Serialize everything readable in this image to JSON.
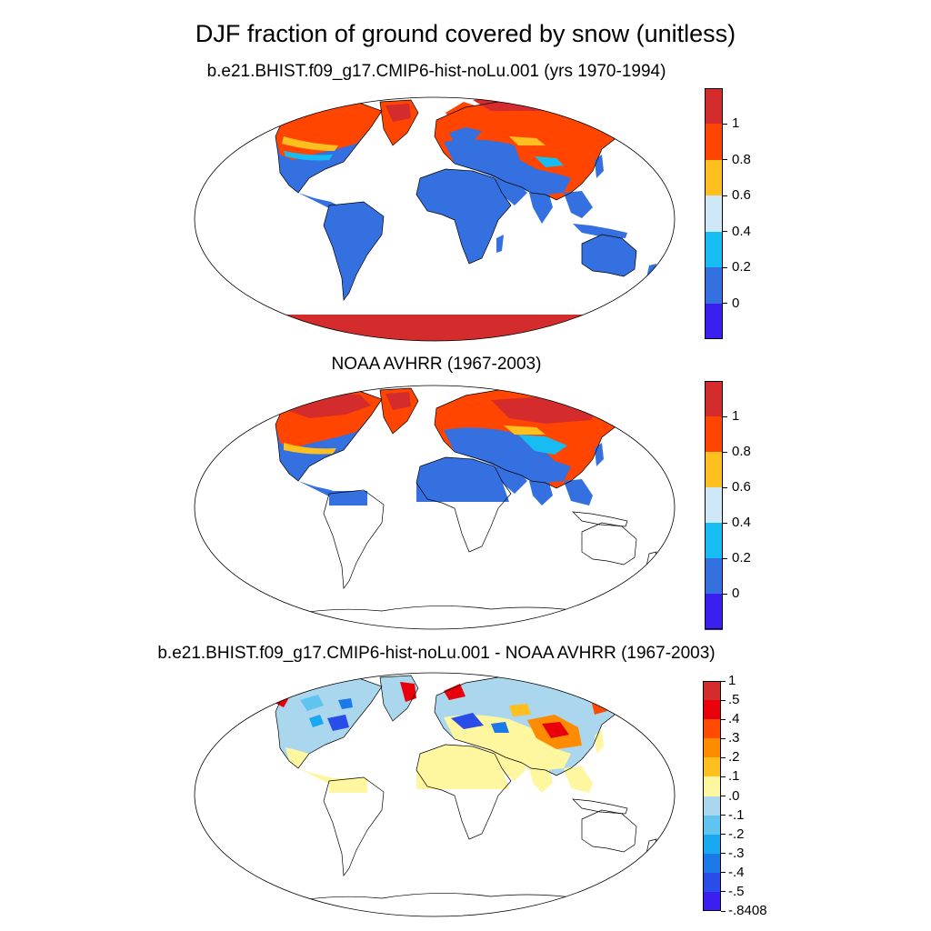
{
  "title": "DJF fraction of ground covered by snow (unitless)",
  "panels": [
    {
      "title": "b.e21.BHIST.f09_g17.CMIP6-hist-noLu.001 (yrs 1970-1994)",
      "colorbar": {
        "labels": [
          "1",
          "0.8",
          "0.6",
          "0.4",
          "0.2",
          "0"
        ],
        "colors": [
          "#d42c2c",
          "#ff4500",
          "#ffbf1f",
          "#cfe8f8",
          "#17bdf2",
          "#3470e0",
          "#3a1ff0"
        ]
      }
    },
    {
      "title": "NOAA AVHRR (1967-2003)",
      "colorbar": {
        "labels": [
          "1",
          "0.8",
          "0.6",
          "0.4",
          "0.2",
          "0"
        ],
        "colors": [
          "#d42c2c",
          "#ff4500",
          "#ffbf1f",
          "#cfe8f8",
          "#17bdf2",
          "#3470e0",
          "#3a1ff0"
        ]
      }
    },
    {
      "title": "b.e21.BHIST.f09_g17.CMIP6-hist-noLu.001 - NOAA AVHRR (1967-2003)",
      "colorbar": {
        "labels": [
          "1",
          ".5",
          ".4",
          ".3",
          ".2",
          ".1",
          ".0",
          "-.1",
          "-.2",
          "-.3",
          "-.4",
          "-.5",
          "-.8408"
        ],
        "colors": [
          "#d42c2c",
          "#e8000b",
          "#ff4b00",
          "#ff8c00",
          "#ffbf1f",
          "#fff6a0",
          "#aad6ee",
          "#5fc4f0",
          "#1aa8f0",
          "#1c7ae8",
          "#2a4ce8",
          "#3a1ff0"
        ]
      }
    }
  ]
}
